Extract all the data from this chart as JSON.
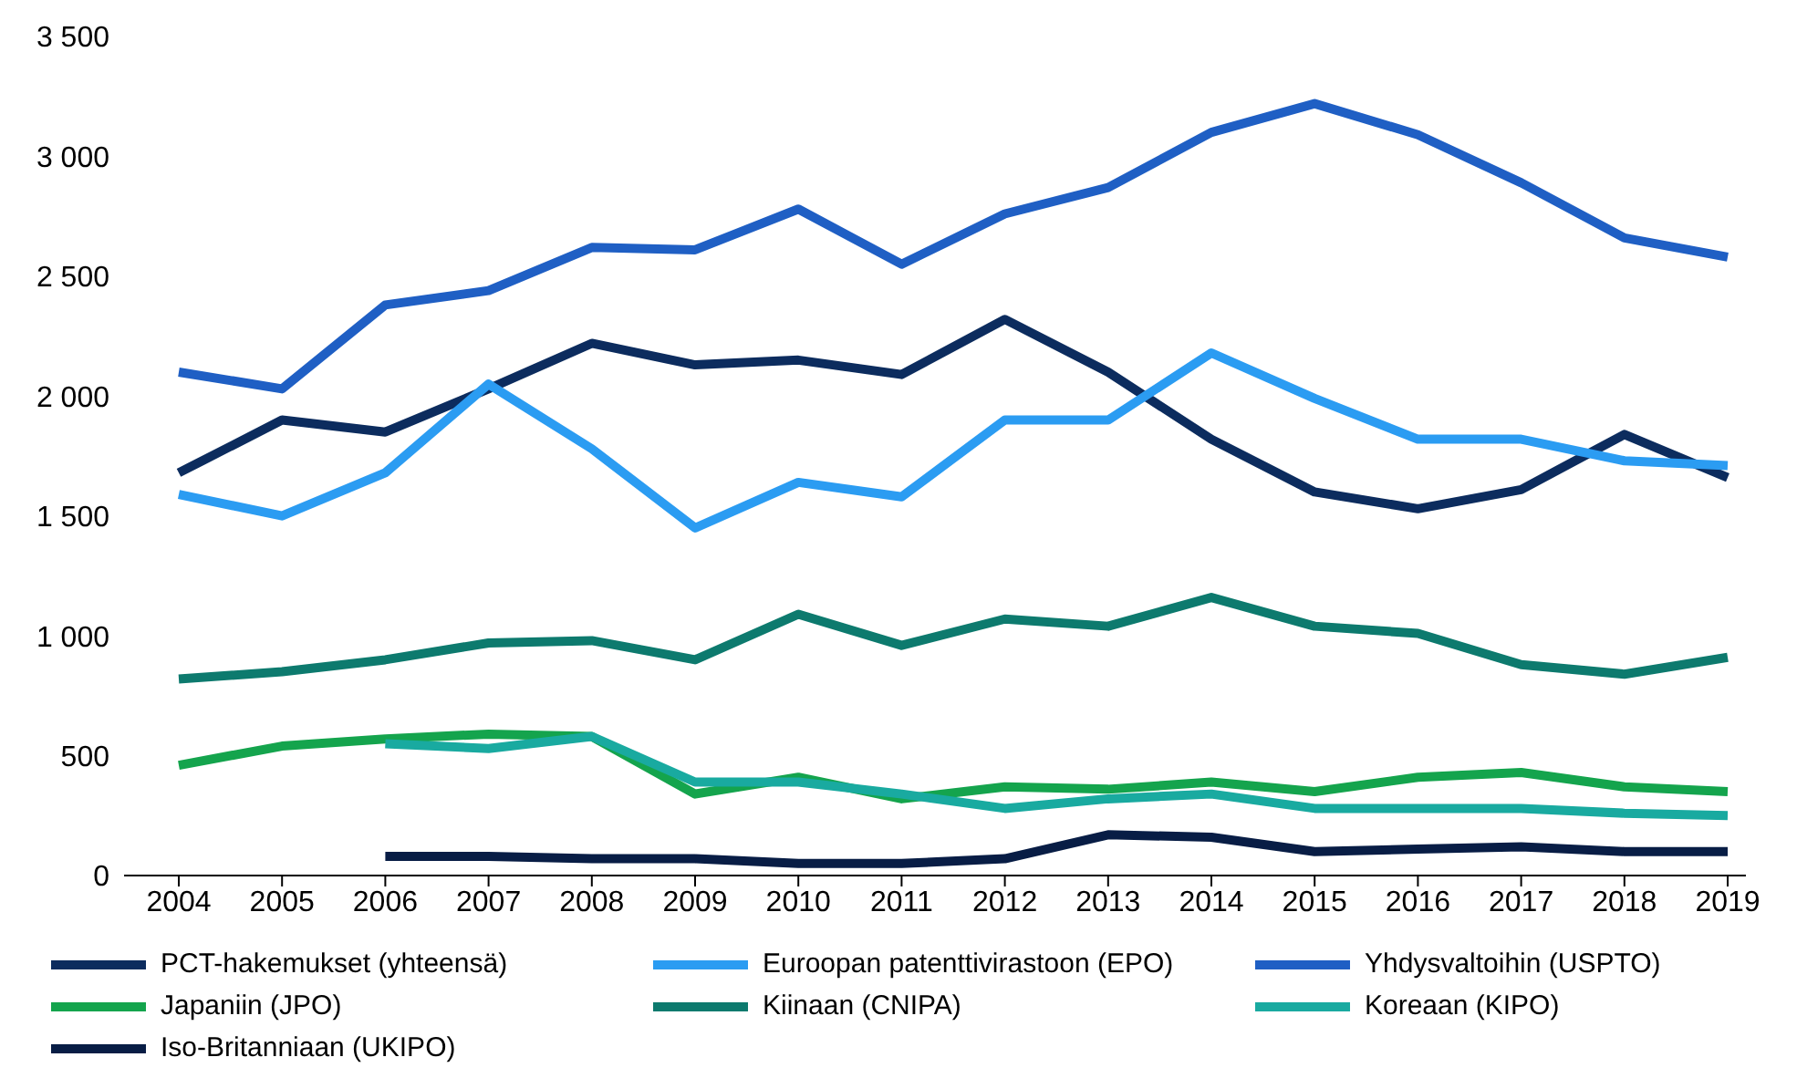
{
  "chart_data": {
    "type": "line",
    "categories": [
      "2004",
      "2005",
      "2006",
      "2007",
      "2008",
      "2009",
      "2010",
      "2011",
      "2012",
      "2013",
      "2014",
      "2015",
      "2016",
      "2017",
      "2018",
      "2019"
    ],
    "series": [
      {
        "name": "PCT-hakemukset (yhteensä)",
        "color": "#0c2c5e",
        "values": [
          1680,
          1900,
          1850,
          2030,
          2220,
          2130,
          2150,
          2090,
          2320,
          2100,
          1820,
          1600,
          1530,
          1610,
          1840,
          1660
        ]
      },
      {
        "name": "Euroopan patenttivirastoon (EPO)",
        "color": "#2b9cf2",
        "values": [
          1590,
          1500,
          1680,
          2050,
          1780,
          1450,
          1640,
          1580,
          1900,
          1900,
          2180,
          1990,
          1820,
          1820,
          1730,
          1710
        ]
      },
      {
        "name": "Yhdysvaltoihin (USPTO)",
        "color": "#1f5fc4",
        "values": [
          2100,
          2030,
          2380,
          2440,
          2620,
          2610,
          2780,
          2550,
          2760,
          2870,
          3100,
          3220,
          3090,
          2890,
          2660,
          2580
        ]
      },
      {
        "name": "Japaniin (JPO)",
        "color": "#14a44d",
        "values": [
          460,
          540,
          570,
          590,
          580,
          340,
          410,
          320,
          370,
          360,
          390,
          350,
          410,
          430,
          370,
          350
        ]
      },
      {
        "name": "Kiinaan (CNIPA)",
        "color": "#0d7a6e",
        "values": [
          820,
          850,
          900,
          970,
          980,
          900,
          1090,
          960,
          1070,
          1040,
          1160,
          1040,
          1010,
          880,
          840,
          910
        ]
      },
      {
        "name": "Koreaan (KIPO)",
        "color": "#19aaa0",
        "values": [
          null,
          null,
          550,
          530,
          580,
          390,
          390,
          340,
          280,
          320,
          340,
          280,
          280,
          280,
          260,
          250
        ]
      },
      {
        "name": "Iso-Britanniaan (UKIPO)",
        "color": "#081d45",
        "values": [
          null,
          null,
          80,
          80,
          70,
          70,
          50,
          50,
          70,
          170,
          160,
          100,
          110,
          120,
          100,
          100
        ]
      }
    ],
    "ylim": [
      0,
      3500
    ],
    "yticks": [
      0,
      {
        "value": 500,
        "label": "500"
      },
      {
        "value": 1000,
        "label": "1 000"
      },
      {
        "value": 1500,
        "label": "1 500"
      },
      {
        "value": 2000,
        "label": "2 000"
      },
      {
        "value": 2500,
        "label": "2 500"
      },
      {
        "value": 3000,
        "label": "3 000"
      },
      {
        "value": 3500,
        "label": "3 500"
      }
    ],
    "grid": false,
    "legend": "bottom",
    "marker": "none",
    "line_style": "solid"
  }
}
